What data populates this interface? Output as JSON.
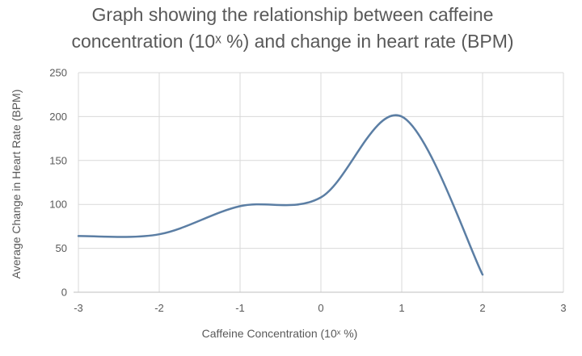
{
  "chart_data": {
    "type": "line",
    "title_line1": "Graph showing the relationship between caffeine",
    "title_line2": "concentration (10ˣ %) and change in heart rate (BPM)",
    "xlabel": "Caffeine Concentration (10ˣ %)",
    "ylabel": "Average Change in Heart Rate (BPM)",
    "xlim": [
      -3,
      3
    ],
    "ylim": [
      0,
      250
    ],
    "x_ticks": [
      "-3",
      "-2",
      "-1",
      "0",
      "1",
      "2",
      "3"
    ],
    "y_ticks": [
      "0",
      "50",
      "100",
      "150",
      "200",
      "250"
    ],
    "grid": true,
    "smooth": true,
    "series_color": "#5b7ea4",
    "grid_color": "#d9d9d9",
    "x": [
      -3,
      -2,
      -1,
      0,
      1,
      2
    ],
    "values": [
      64,
      66,
      98,
      108,
      200,
      20
    ]
  }
}
